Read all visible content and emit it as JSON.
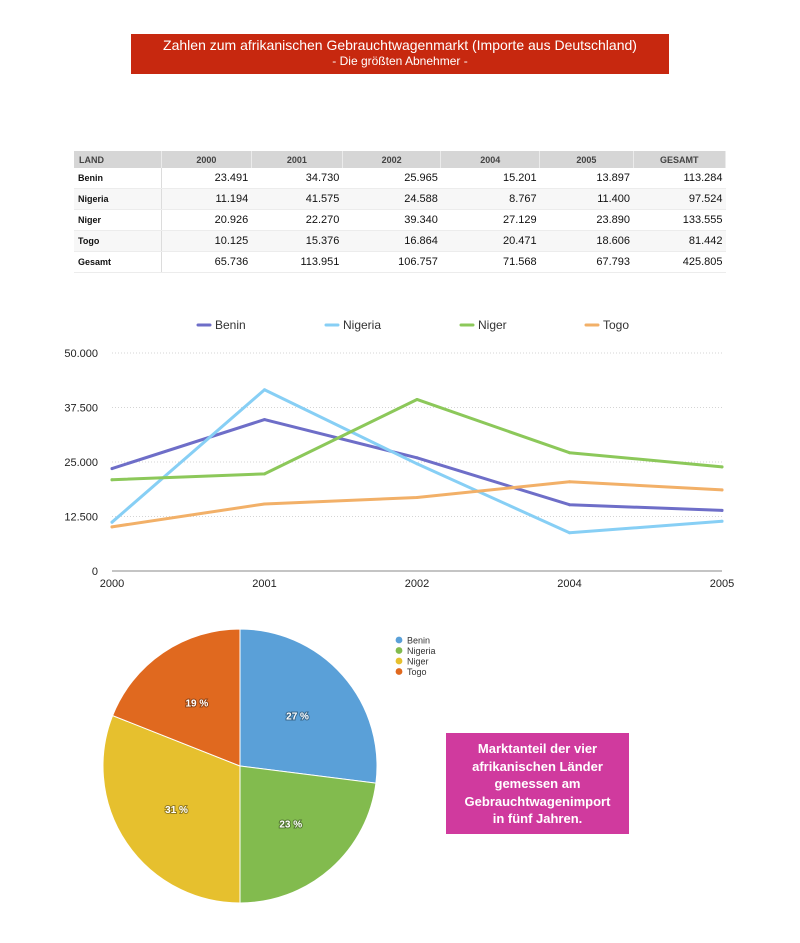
{
  "header": {
    "title": "Zahlen zum afrikanischen Gebrauchtwagenmarkt (Importe aus Deutschland)",
    "subtitle": "- Die größten Abnehmer -"
  },
  "table": {
    "headers": [
      "LAND",
      "2000",
      "2001",
      "2002",
      "2004",
      "2005",
      "GESAMT"
    ],
    "rows": [
      [
        "Benin",
        "23.491",
        "34.730",
        "25.965",
        "15.201",
        "13.897",
        "113.284"
      ],
      [
        "Nigeria",
        "11.194",
        "41.575",
        "24.588",
        "8.767",
        "11.400",
        "97.524"
      ],
      [
        "Niger",
        "20.926",
        "22.270",
        "39.340",
        "27.129",
        "23.890",
        "133.555"
      ],
      [
        "Togo",
        "10.125",
        "15.376",
        "16.864",
        "20.471",
        "18.606",
        "81.442"
      ],
      [
        "Gesamt",
        "65.736",
        "113.951",
        "106.757",
        "71.568",
        "67.793",
        "425.805"
      ]
    ]
  },
  "chart_data": [
    {
      "type": "line",
      "x": [
        "2000",
        "2001",
        "2002",
        "2004",
        "2005"
      ],
      "series": [
        {
          "name": "Benin",
          "color": "#6e6ec8",
          "values": [
            23491,
            34730,
            25965,
            15201,
            13897
          ]
        },
        {
          "name": "Nigeria",
          "color": "#87cff5",
          "values": [
            11194,
            41575,
            24588,
            8767,
            11400
          ]
        },
        {
          "name": "Niger",
          "color": "#8cc85a",
          "values": [
            20926,
            22270,
            39340,
            27129,
            23890
          ]
        },
        {
          "name": "Togo",
          "color": "#f2b068",
          "values": [
            10125,
            15376,
            16864,
            20471,
            18606
          ]
        }
      ],
      "ylim": [
        0,
        50000
      ],
      "yticks": [
        0,
        12500,
        25000,
        37500,
        50000
      ],
      "ytick_labels": [
        "0",
        "12.500",
        "25.000",
        "37.500",
        "50.000"
      ],
      "legend": "top",
      "grid": true
    },
    {
      "type": "pie",
      "categories": [
        "Benin",
        "Nigeria",
        "Niger",
        "Togo"
      ],
      "values": [
        27,
        23,
        31,
        19
      ],
      "labels": [
        "27 %",
        "23 %",
        "31 %",
        "19 %"
      ],
      "colors": [
        "#5aa0d8",
        "#82bb4e",
        "#e6c02e",
        "#e0691f"
      ],
      "legend": "top-right"
    }
  ],
  "note": {
    "lines": [
      "Marktanteil der vier",
      "afrikanischen Länder",
      "gemessen am",
      "Gebrauchtwagenimport",
      "in fünf Jahren."
    ]
  }
}
